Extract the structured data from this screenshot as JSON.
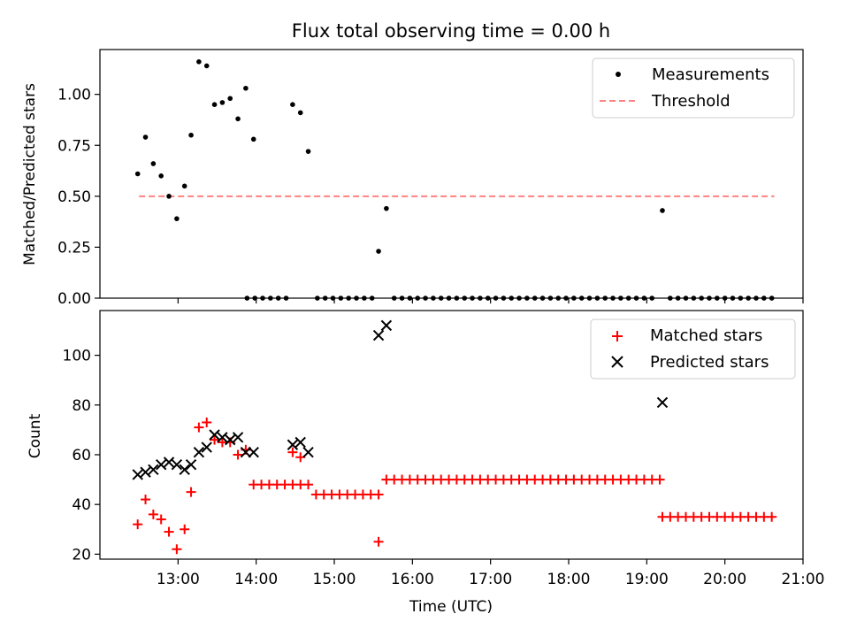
{
  "chart_data": [
    {
      "type": "scatter",
      "title": "Flux total observing time = 0.00 h",
      "ylabel": "Matched/Predicted stars",
      "xlim_hours": [
        12.0,
        21.0
      ],
      "ylim": [
        0.0,
        1.22
      ],
      "y_ticks": [
        "0.00",
        "0.25",
        "0.50",
        "0.75",
        "1.00"
      ],
      "y_tick_values": [
        0.0,
        0.25,
        0.5,
        0.75,
        1.0
      ],
      "legend": {
        "position": "upper right",
        "entries": [
          "Measurements",
          "Threshold"
        ]
      },
      "threshold": {
        "name": "Threshold",
        "value": 0.5,
        "x_range": [
          "12:30",
          "20:38"
        ],
        "color": "#ff8080"
      },
      "series": [
        {
          "name": "Measurements",
          "marker": "dot",
          "color": "#000000",
          "points": [
            [
              "12:29",
              0.61
            ],
            [
              "12:35",
              0.79
            ],
            [
              "12:41",
              0.66
            ],
            [
              "12:47",
              0.6
            ],
            [
              "12:53",
              0.5
            ],
            [
              "12:59",
              0.39
            ],
            [
              "13:05",
              0.55
            ],
            [
              "13:10",
              0.8
            ],
            [
              "13:16",
              1.16
            ],
            [
              "13:22",
              1.14
            ],
            [
              "13:28",
              0.95
            ],
            [
              "13:34",
              0.96
            ],
            [
              "13:40",
              0.98
            ],
            [
              "13:46",
              0.88
            ],
            [
              "13:52",
              1.03
            ],
            [
              "13:58",
              0.78
            ],
            [
              "14:28",
              0.95
            ],
            [
              "14:34",
              0.91
            ],
            [
              "14:40",
              0.72
            ],
            [
              "15:34",
              0.23
            ],
            [
              "15:40",
              0.44
            ],
            [
              "19:12",
              0.43
            ],
            [
              "13:53",
              0.0
            ],
            [
              "13:59",
              0.0
            ],
            [
              "14:05",
              0.0
            ],
            [
              "14:11",
              0.0
            ],
            [
              "14:17",
              0.0
            ],
            [
              "14:23",
              0.0
            ],
            [
              "14:47",
              0.0
            ],
            [
              "14:53",
              0.0
            ],
            [
              "14:59",
              0.0
            ],
            [
              "15:05",
              0.0
            ],
            [
              "15:11",
              0.0
            ],
            [
              "15:17",
              0.0
            ],
            [
              "15:23",
              0.0
            ],
            [
              "15:29",
              0.0
            ],
            [
              "15:46",
              0.0
            ],
            [
              "15:52",
              0.0
            ],
            [
              "15:58",
              0.0
            ],
            [
              "16:04",
              0.0
            ],
            [
              "16:10",
              0.0
            ],
            [
              "16:16",
              0.0
            ],
            [
              "16:22",
              0.0
            ],
            [
              "16:28",
              0.0
            ],
            [
              "16:34",
              0.0
            ],
            [
              "16:40",
              0.0
            ],
            [
              "16:46",
              0.0
            ],
            [
              "16:52",
              0.0
            ],
            [
              "16:58",
              0.0
            ],
            [
              "17:04",
              0.0
            ],
            [
              "17:10",
              0.0
            ],
            [
              "17:16",
              0.0
            ],
            [
              "17:22",
              0.0
            ],
            [
              "17:28",
              0.0
            ],
            [
              "17:34",
              0.0
            ],
            [
              "17:40",
              0.0
            ],
            [
              "17:46",
              0.0
            ],
            [
              "17:52",
              0.0
            ],
            [
              "17:58",
              0.0
            ],
            [
              "18:04",
              0.0
            ],
            [
              "18:10",
              0.0
            ],
            [
              "18:16",
              0.0
            ],
            [
              "18:22",
              0.0
            ],
            [
              "18:28",
              0.0
            ],
            [
              "18:34",
              0.0
            ],
            [
              "18:40",
              0.0
            ],
            [
              "18:46",
              0.0
            ],
            [
              "18:52",
              0.0
            ],
            [
              "18:58",
              0.0
            ],
            [
              "19:04",
              0.0
            ],
            [
              "19:18",
              0.0
            ],
            [
              "19:24",
              0.0
            ],
            [
              "19:30",
              0.0
            ],
            [
              "19:36",
              0.0
            ],
            [
              "19:42",
              0.0
            ],
            [
              "19:48",
              0.0
            ],
            [
              "19:54",
              0.0
            ],
            [
              "20:00",
              0.0
            ],
            [
              "20:06",
              0.0
            ],
            [
              "20:12",
              0.0
            ],
            [
              "20:18",
              0.0
            ],
            [
              "20:24",
              0.0
            ],
            [
              "20:30",
              0.0
            ],
            [
              "20:36",
              0.0
            ]
          ]
        }
      ]
    },
    {
      "type": "scatter",
      "xlabel": "Time (UTC)",
      "ylabel": "Count",
      "xlim_hours": [
        12.0,
        21.0
      ],
      "ylim": [
        18,
        118
      ],
      "x_ticks": [
        "13:00",
        "14:00",
        "15:00",
        "16:00",
        "17:00",
        "18:00",
        "19:00",
        "20:00",
        "21:00"
      ],
      "y_ticks": [
        "20",
        "40",
        "60",
        "80",
        "100"
      ],
      "y_tick_values": [
        20,
        40,
        60,
        80,
        100
      ],
      "legend": {
        "position": "upper right",
        "entries": [
          "Matched stars",
          "Predicted stars"
        ]
      },
      "series": [
        {
          "name": "Matched stars",
          "marker": "plus",
          "color": "#ff0000",
          "points": [
            [
              "12:29",
              32
            ],
            [
              "12:35",
              42
            ],
            [
              "12:41",
              36
            ],
            [
              "12:47",
              34
            ],
            [
              "12:53",
              29
            ],
            [
              "12:59",
              22
            ],
            [
              "13:05",
              30
            ],
            [
              "13:10",
              45
            ],
            [
              "13:16",
              71
            ],
            [
              "13:22",
              73
            ],
            [
              "13:28",
              66
            ],
            [
              "13:34",
              65
            ],
            [
              "13:40",
              65
            ],
            [
              "13:46",
              60
            ],
            [
              "13:52",
              62
            ],
            [
              "13:58",
              48
            ],
            [
              "14:04",
              48
            ],
            [
              "14:10",
              48
            ],
            [
              "14:16",
              48
            ],
            [
              "14:22",
              48
            ],
            [
              "14:28",
              48
            ],
            [
              "14:34",
              48
            ],
            [
              "14:40",
              48
            ],
            [
              "14:28",
              61
            ],
            [
              "14:34",
              59
            ],
            [
              "14:46",
              44
            ],
            [
              "14:52",
              44
            ],
            [
              "14:58",
              44
            ],
            [
              "15:04",
              44
            ],
            [
              "15:10",
              44
            ],
            [
              "15:16",
              44
            ],
            [
              "15:22",
              44
            ],
            [
              "15:28",
              44
            ],
            [
              "15:34",
              44
            ],
            [
              "15:34",
              25
            ],
            [
              "15:40",
              50
            ],
            [
              "15:46",
              50
            ],
            [
              "15:52",
              50
            ],
            [
              "15:58",
              50
            ],
            [
              "16:04",
              50
            ],
            [
              "16:10",
              50
            ],
            [
              "16:16",
              50
            ],
            [
              "16:22",
              50
            ],
            [
              "16:28",
              50
            ],
            [
              "16:34",
              50
            ],
            [
              "16:40",
              50
            ],
            [
              "16:46",
              50
            ],
            [
              "16:52",
              50
            ],
            [
              "16:58",
              50
            ],
            [
              "17:04",
              50
            ],
            [
              "17:10",
              50
            ],
            [
              "17:16",
              50
            ],
            [
              "17:22",
              50
            ],
            [
              "17:28",
              50
            ],
            [
              "17:34",
              50
            ],
            [
              "17:40",
              50
            ],
            [
              "17:46",
              50
            ],
            [
              "17:52",
              50
            ],
            [
              "17:58",
              50
            ],
            [
              "18:04",
              50
            ],
            [
              "18:10",
              50
            ],
            [
              "18:16",
              50
            ],
            [
              "18:22",
              50
            ],
            [
              "18:28",
              50
            ],
            [
              "18:34",
              50
            ],
            [
              "18:40",
              50
            ],
            [
              "18:46",
              50
            ],
            [
              "18:52",
              50
            ],
            [
              "18:58",
              50
            ],
            [
              "19:04",
              50
            ],
            [
              "19:10",
              50
            ],
            [
              "19:12",
              35
            ],
            [
              "19:18",
              35
            ],
            [
              "19:24",
              35
            ],
            [
              "19:30",
              35
            ],
            [
              "19:36",
              35
            ],
            [
              "19:42",
              35
            ],
            [
              "19:48",
              35
            ],
            [
              "19:54",
              35
            ],
            [
              "20:00",
              35
            ],
            [
              "20:06",
              35
            ],
            [
              "20:12",
              35
            ],
            [
              "20:18",
              35
            ],
            [
              "20:24",
              35
            ],
            [
              "20:30",
              35
            ],
            [
              "20:36",
              35
            ]
          ]
        },
        {
          "name": "Predicted stars",
          "marker": "x",
          "color": "#000000",
          "points": [
            [
              "12:29",
              52
            ],
            [
              "12:35",
              53
            ],
            [
              "12:41",
              54
            ],
            [
              "12:47",
              56
            ],
            [
              "12:53",
              57
            ],
            [
              "12:59",
              56
            ],
            [
              "13:05",
              54
            ],
            [
              "13:10",
              56
            ],
            [
              "13:16",
              61
            ],
            [
              "13:22",
              63
            ],
            [
              "13:28",
              68
            ],
            [
              "13:34",
              67
            ],
            [
              "13:40",
              66
            ],
            [
              "13:46",
              67
            ],
            [
              "13:52",
              61
            ],
            [
              "13:58",
              61
            ],
            [
              "14:28",
              64
            ],
            [
              "14:34",
              65
            ],
            [
              "14:40",
              61
            ],
            [
              "15:34",
              108
            ],
            [
              "15:40",
              112
            ],
            [
              "19:12",
              81
            ]
          ]
        }
      ]
    }
  ]
}
